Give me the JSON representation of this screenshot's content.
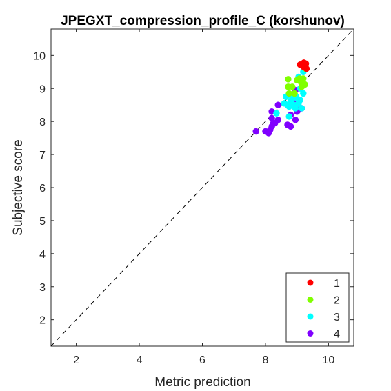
{
  "chart_data": {
    "type": "scatter",
    "title": "JPEGXT_compression_profile_C (korshunov)",
    "xlabel": "Metric prediction",
    "ylabel": "Subjective score",
    "xlim": [
      1.2,
      10.8
    ],
    "ylim": [
      1.2,
      10.8
    ],
    "xticks": [
      "2",
      "4",
      "6",
      "8",
      "10"
    ],
    "yticks": [
      "2",
      "3",
      "4",
      "5",
      "6",
      "7",
      "8",
      "9",
      "10"
    ],
    "grid": false,
    "legend_position": "bottom-right",
    "reference_line": "identity (dashed)",
    "series": [
      {
        "name": "1",
        "color": "#ff0000",
        "points": [
          [
            9.1,
            9.72
          ],
          [
            9.22,
            9.78
          ],
          [
            9.28,
            9.75
          ],
          [
            9.24,
            9.7
          ],
          [
            9.3,
            9.6
          ],
          [
            9.2,
            9.66
          ]
        ]
      },
      {
        "name": "2",
        "color": "#80ff00",
        "points": [
          [
            8.72,
            9.28
          ],
          [
            8.72,
            9.05
          ],
          [
            8.75,
            8.85
          ],
          [
            8.92,
            8.85
          ],
          [
            9.0,
            9.25
          ],
          [
            9.08,
            9.3
          ],
          [
            9.12,
            9.2
          ],
          [
            9.15,
            9.05
          ],
          [
            9.2,
            9.3
          ],
          [
            9.25,
            9.12
          ],
          [
            9.28,
            9.6
          ],
          [
            9.22,
            9.72
          ],
          [
            8.85,
            9.05
          ]
        ]
      },
      {
        "name": "3",
        "color": "#00ffff",
        "points": [
          [
            8.65,
            8.75
          ],
          [
            8.7,
            8.5
          ],
          [
            8.75,
            8.45
          ],
          [
            8.8,
            8.62
          ],
          [
            8.85,
            8.72
          ],
          [
            8.9,
            8.5
          ],
          [
            8.95,
            8.78
          ],
          [
            9.0,
            8.7
          ],
          [
            9.05,
            8.55
          ],
          [
            9.1,
            8.65
          ],
          [
            9.15,
            8.4
          ],
          [
            9.2,
            8.85
          ],
          [
            9.1,
            9.0
          ],
          [
            9.05,
            9.35
          ],
          [
            9.2,
            9.5
          ],
          [
            8.75,
            8.15
          ],
          [
            8.6,
            8.55
          ],
          [
            8.95,
            8.4
          ],
          [
            8.35,
            8.25
          ]
        ]
      },
      {
        "name": "4",
        "color": "#8000ff",
        "points": [
          [
            7.7,
            7.7
          ],
          [
            8.0,
            7.7
          ],
          [
            8.1,
            7.65
          ],
          [
            8.15,
            7.75
          ],
          [
            8.2,
            7.85
          ],
          [
            8.25,
            7.95
          ],
          [
            8.3,
            7.95
          ],
          [
            8.4,
            8.05
          ],
          [
            8.2,
            8.1
          ],
          [
            8.2,
            8.3
          ],
          [
            8.4,
            8.5
          ],
          [
            8.7,
            7.9
          ],
          [
            8.8,
            7.85
          ],
          [
            8.8,
            8.2
          ],
          [
            8.95,
            8.05
          ],
          [
            8.9,
            8.6
          ],
          [
            8.95,
            8.95
          ],
          [
            9.0,
            8.3
          ],
          [
            9.05,
            8.35
          ],
          [
            9.15,
            8.4
          ]
        ]
      }
    ]
  }
}
